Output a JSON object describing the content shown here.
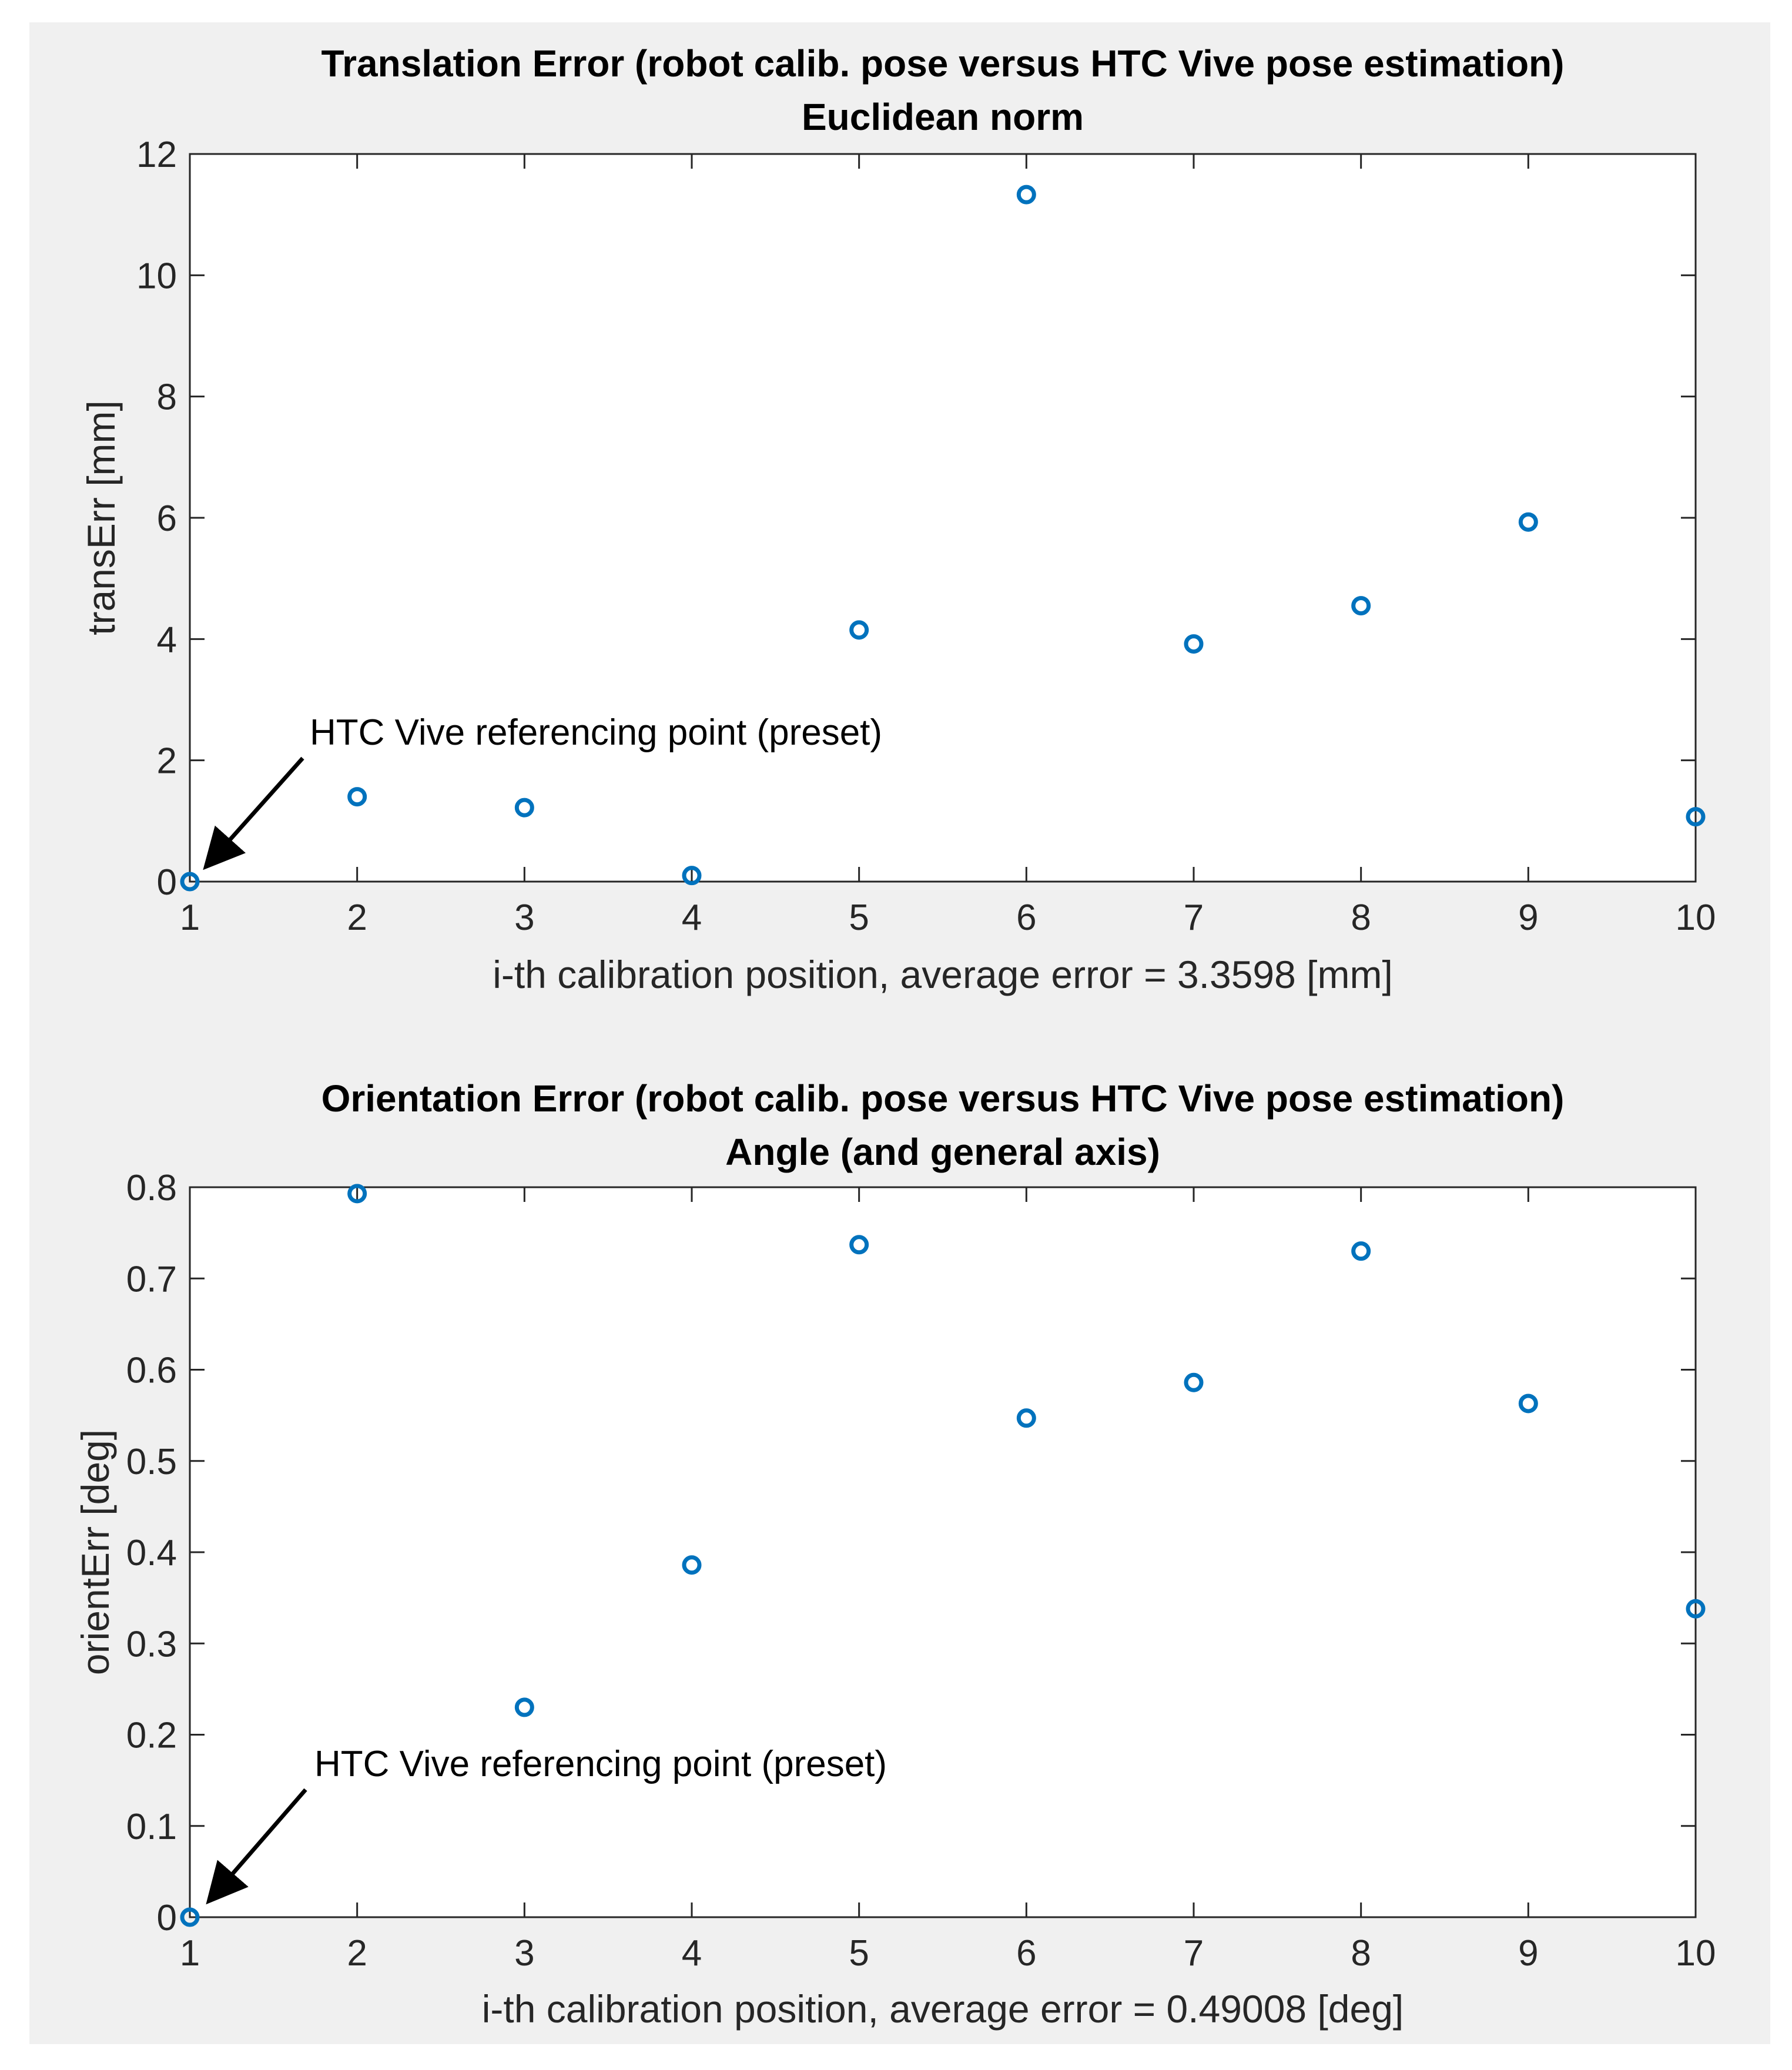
{
  "figure": {
    "background": "#f0f0f0",
    "axes_background": "#ffffff",
    "marker_color": "#0072bd"
  },
  "chart_data": [
    {
      "type": "scatter",
      "title": "Translation Error  (robot calib. pose versus HTC Vive pose estimation)",
      "subtitle": "Euclidean norm",
      "xlabel": "i-th calibration position, average error = 3.3598 [mm]",
      "ylabel": "transErr [mm]",
      "xlim": [
        1,
        10
      ],
      "ylim": [
        0,
        12
      ],
      "xticks": [
        1,
        2,
        3,
        4,
        5,
        6,
        7,
        8,
        9,
        10
      ],
      "xtick_labels": [
        "1",
        "2",
        "3",
        "4",
        "5",
        "6",
        "7",
        "8",
        "9",
        "10"
      ],
      "yticks": [
        0,
        2,
        4,
        6,
        8,
        10,
        12
      ],
      "ytick_labels": [
        "0",
        "2",
        "4",
        "6",
        "8",
        "10",
        "12"
      ],
      "x": [
        1,
        2,
        3,
        4,
        5,
        6,
        7,
        8,
        9,
        10
      ],
      "y": [
        0,
        1.4,
        1.22,
        0.1,
        4.15,
        11.33,
        3.92,
        4.55,
        5.93,
        1.07
      ],
      "marker": "circle-open",
      "annotation": {
        "text": "HTC Vive referencing point (preset)",
        "points_to": [
          1,
          0
        ]
      }
    },
    {
      "type": "scatter",
      "title": "Orientation Error  (robot calib. pose versus HTC Vive pose estimation)",
      "subtitle": "Angle (and general axis)",
      "xlabel": "i-th calibration position, average error = 0.49008 [deg]",
      "ylabel": "orientErr [deg]",
      "xlim": [
        1,
        10
      ],
      "ylim": [
        0,
        0.8
      ],
      "xticks": [
        1,
        2,
        3,
        4,
        5,
        6,
        7,
        8,
        9,
        10
      ],
      "xtick_labels": [
        "1",
        "2",
        "3",
        "4",
        "5",
        "6",
        "7",
        "8",
        "9",
        "10"
      ],
      "yticks": [
        0,
        0.1,
        0.2,
        0.3,
        0.4,
        0.5,
        0.6,
        0.7,
        0.8
      ],
      "ytick_labels": [
        "0",
        "0.1",
        "0.2",
        "0.3",
        "0.4",
        "0.5",
        "0.6",
        "0.7",
        "0.8"
      ],
      "x": [
        1,
        2,
        3,
        4,
        5,
        6,
        7,
        8,
        9,
        10
      ],
      "y": [
        0,
        0.793,
        0.23,
        0.386,
        0.737,
        0.547,
        0.586,
        0.73,
        0.563,
        0.338
      ],
      "marker": "circle-open",
      "annotation": {
        "text": "HTC Vive referencing point (preset)",
        "points_to": [
          1,
          0
        ]
      }
    }
  ]
}
